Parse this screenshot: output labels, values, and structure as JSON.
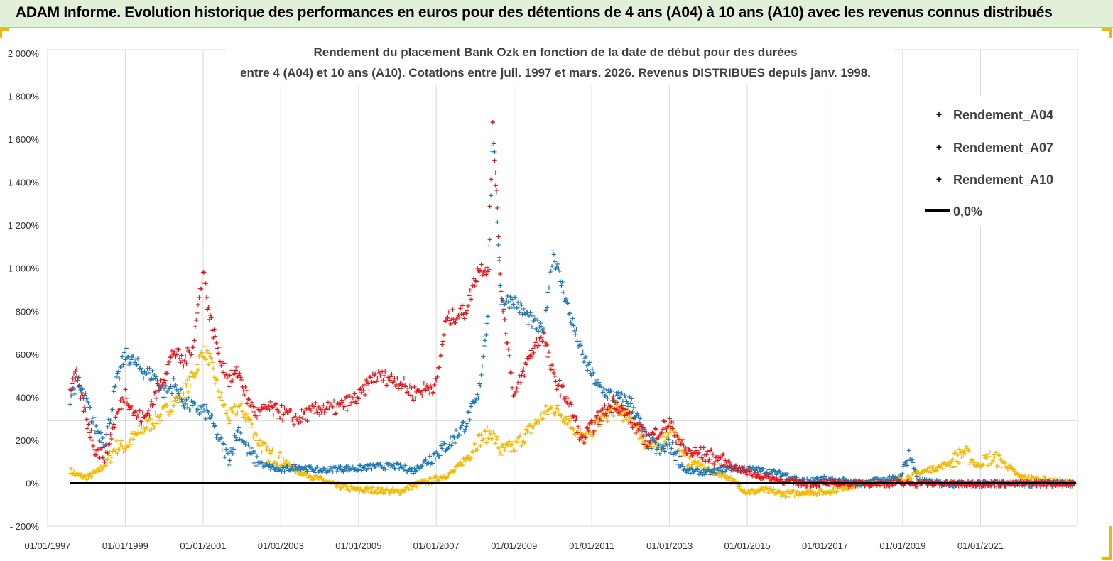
{
  "header": {
    "title": "ADAM Informe. Evolution historique des performances en euros pour des détentions de 4 ans (A04) à 10 ans (A10) avec les revenus connus distribués"
  },
  "colors": {
    "A04": "#f5b800",
    "A07": "#1f77b4",
    "A10": "#e8141c",
    "zero": "#000000",
    "grid": "#d9d9d9"
  },
  "chart_data": {
    "type": "scatter",
    "title_line1": "Rendement du placement Bank Ozk en fonction de la date de début pour des durées",
    "title_line2": "entre 4 (A04) et 10 ans (A10).  Cotations entre juil. 1997 et mars. 2026. Revenus DISTRIBUES depuis janv. 1998.",
    "xlabel": "",
    "ylabel": "",
    "x_range": [
      "1997-01-01",
      "2023-07-01"
    ],
    "ylim": [
      -200,
      2000
    ],
    "y_ticks": [
      -200,
      0,
      200,
      400,
      600,
      800,
      1000,
      1200,
      1400,
      1600,
      1800,
      2000
    ],
    "y_tick_labels": [
      "- 200%",
      "0%",
      "200%",
      "400%",
      "600%",
      "800%",
      "1 000%",
      "1 200%",
      "1 400%",
      "1 600%",
      "1 800%",
      "2 000%"
    ],
    "x_tick_labels": [
      "01/01/1997",
      "01/01/1999",
      "01/01/2001",
      "01/01/2003",
      "01/01/2005",
      "01/01/2007",
      "01/01/2009",
      "01/01/2011",
      "01/01/2013",
      "01/01/2015",
      "01/01/2017",
      "01/01/2019",
      "01/01/2021"
    ],
    "x_ticks": [
      "1997-01-01",
      "1999-01-01",
      "2001-01-01",
      "2003-01-01",
      "2005-01-01",
      "2007-01-01",
      "2009-01-01",
      "2011-01-01",
      "2013-01-01",
      "2015-01-01",
      "2017-01-01",
      "2019-01-01",
      "2021-01-01"
    ],
    "legend_position": "top-right",
    "grid": "vertical",
    "series": [
      {
        "name": "Rendement_A04",
        "x": [
          "1997-08-01",
          "1997-10-01",
          "1998-01-01",
          "1998-04-01",
          "1998-07-01",
          "1998-10-01",
          "1999-01-01",
          "1999-04-01",
          "1999-07-01",
          "1999-10-01",
          "2000-01-01",
          "2000-04-01",
          "2000-07-01",
          "2000-10-01",
          "2001-01-01",
          "2001-03-01",
          "2001-06-01",
          "2001-09-01",
          "2001-12-01",
          "2002-03-01",
          "2002-06-01",
          "2002-09-01",
          "2003-01-01",
          "2003-06-01",
          "2004-01-01",
          "2004-06-01",
          "2005-01-01",
          "2005-06-01",
          "2006-01-01",
          "2006-06-01",
          "2007-01-01",
          "2007-06-01",
          "2007-10-01",
          "2008-02-01",
          "2008-06-01",
          "2008-09-01",
          "2009-01-01",
          "2009-06-01",
          "2009-10-01",
          "2010-01-01",
          "2010-06-01",
          "2010-10-01",
          "2011-03-01",
          "2011-08-01",
          "2012-01-01",
          "2012-06-01",
          "2012-10-01",
          "2013-01-01",
          "2013-06-01",
          "2014-01-01",
          "2014-06-01",
          "2015-01-01",
          "2015-06-01",
          "2016-01-01",
          "2016-06-01",
          "2017-01-01",
          "2017-06-01",
          "2018-01-01",
          "2018-06-01",
          "2019-01-01",
          "2019-06-01",
          "2020-01-01",
          "2020-04-01",
          "2020-08-01",
          "2020-12-01",
          "2021-04-01",
          "2021-08-01",
          "2022-01-01",
          "2022-06-01",
          "2022-12-01",
          "2023-06-01"
        ],
        "values": [
          60,
          40,
          30,
          50,
          90,
          170,
          170,
          220,
          260,
          290,
          330,
          380,
          420,
          500,
          620,
          580,
          420,
          300,
          360,
          300,
          200,
          140,
          110,
          60,
          20,
          -10,
          -30,
          -30,
          -40,
          -10,
          20,
          50,
          110,
          200,
          240,
          150,
          170,
          250,
          320,
          350,
          300,
          200,
          280,
          350,
          300,
          180,
          170,
          260,
          120,
          60,
          40,
          -40,
          -30,
          -50,
          -40,
          -40,
          -20,
          0,
          10,
          20,
          50,
          80,
          100,
          150,
          80,
          120,
          100,
          30,
          20,
          10,
          0
        ]
      },
      {
        "name": "Rendement_A07",
        "x": [
          "1997-08-01",
          "1997-10-01",
          "1998-01-01",
          "1998-04-01",
          "1998-07-01",
          "1998-10-01",
          "1999-01-01",
          "1999-04-01",
          "1999-07-01",
          "1999-10-01",
          "2000-01-01",
          "2000-04-01",
          "2000-07-01",
          "2000-10-01",
          "2001-01-01",
          "2001-03-01",
          "2001-06-01",
          "2001-09-01",
          "2001-12-01",
          "2002-03-01",
          "2002-06-01",
          "2002-09-01",
          "2003-01-01",
          "2003-06-01",
          "2004-01-01",
          "2004-06-01",
          "2005-01-01",
          "2005-06-01",
          "2006-01-01",
          "2006-06-01",
          "2007-01-01",
          "2007-06-01",
          "2007-10-01",
          "2008-02-01",
          "2008-05-01",
          "2008-06-15",
          "2008-09-01",
          "2009-01-01",
          "2009-06-01",
          "2009-10-01",
          "2010-01-01",
          "2010-06-01",
          "2010-10-01",
          "2011-03-01",
          "2011-08-01",
          "2012-01-01",
          "2012-06-01",
          "2012-10-01",
          "2013-01-01",
          "2013-06-01",
          "2014-01-01",
          "2014-06-01",
          "2015-01-01",
          "2015-06-01",
          "2016-01-01",
          "2016-06-01",
          "2017-01-01",
          "2017-06-01",
          "2018-01-01",
          "2018-06-01",
          "2018-12-01",
          "2019-03-01",
          "2019-06-01",
          "2020-01-01",
          "2021-01-01",
          "2022-01-01",
          "2023-06-01"
        ],
        "values": [
          400,
          470,
          380,
          250,
          200,
          450,
          600,
          560,
          520,
          500,
          420,
          460,
          380,
          350,
          340,
          320,
          200,
          120,
          250,
          150,
          100,
          80,
          60,
          80,
          60,
          70,
          70,
          80,
          80,
          60,
          140,
          200,
          280,
          400,
          800,
          1700,
          850,
          850,
          760,
          700,
          1080,
          800,
          600,
          450,
          400,
          380,
          200,
          150,
          180,
          60,
          50,
          70,
          70,
          60,
          40,
          10,
          20,
          10,
          0,
          20,
          20,
          140,
          10,
          0,
          0,
          0,
          0
        ]
      },
      {
        "name": "Rendement_A10",
        "x": [
          "1997-08-01",
          "1997-10-01",
          "1998-01-01",
          "1998-04-01",
          "1998-07-01",
          "1998-10-01",
          "1999-01-01",
          "1999-04-01",
          "1999-07-01",
          "1999-10-01",
          "2000-01-01",
          "2000-04-01",
          "2000-07-01",
          "2000-10-01",
          "2001-01-01",
          "2001-03-01",
          "2001-06-01",
          "2001-09-01",
          "2001-12-01",
          "2002-03-01",
          "2002-06-01",
          "2002-09-01",
          "2003-01-01",
          "2003-06-01",
          "2004-01-01",
          "2004-06-01",
          "2005-01-01",
          "2005-06-01",
          "2006-01-01",
          "2006-06-01",
          "2007-01-01",
          "2007-04-01",
          "2007-10-01",
          "2008-02-01",
          "2008-05-01",
          "2008-06-15",
          "2008-09-01",
          "2009-01-01",
          "2009-06-01",
          "2009-10-01",
          "2010-01-01",
          "2010-06-01",
          "2010-10-01",
          "2011-03-01",
          "2011-08-01",
          "2012-01-01",
          "2012-06-01",
          "2012-10-01",
          "2013-01-01",
          "2013-06-01",
          "2014-01-01",
          "2014-06-01",
          "2015-01-01",
          "2015-06-01",
          "2016-01-01",
          "2016-06-01",
          "2017-01-01",
          "2018-01-01",
          "2019-01-01",
          "2020-01-01",
          "2021-01-01",
          "2022-01-01",
          "2023-06-01"
        ],
        "values": [
          450,
          500,
          300,
          150,
          130,
          300,
          420,
          320,
          300,
          400,
          500,
          620,
          560,
          650,
          1000,
          780,
          600,
          480,
          520,
          380,
          320,
          350,
          330,
          300,
          350,
          350,
          400,
          500,
          480,
          420,
          460,
          760,
          800,
          1000,
          1000,
          1680,
          900,
          400,
          600,
          700,
          500,
          380,
          200,
          300,
          380,
          300,
          200,
          250,
          280,
          150,
          130,
          100,
          50,
          30,
          10,
          0,
          0,
          0,
          0,
          0,
          0,
          0,
          0
        ]
      }
    ],
    "zero_line": {
      "name": "0,0%",
      "value": 0
    }
  }
}
